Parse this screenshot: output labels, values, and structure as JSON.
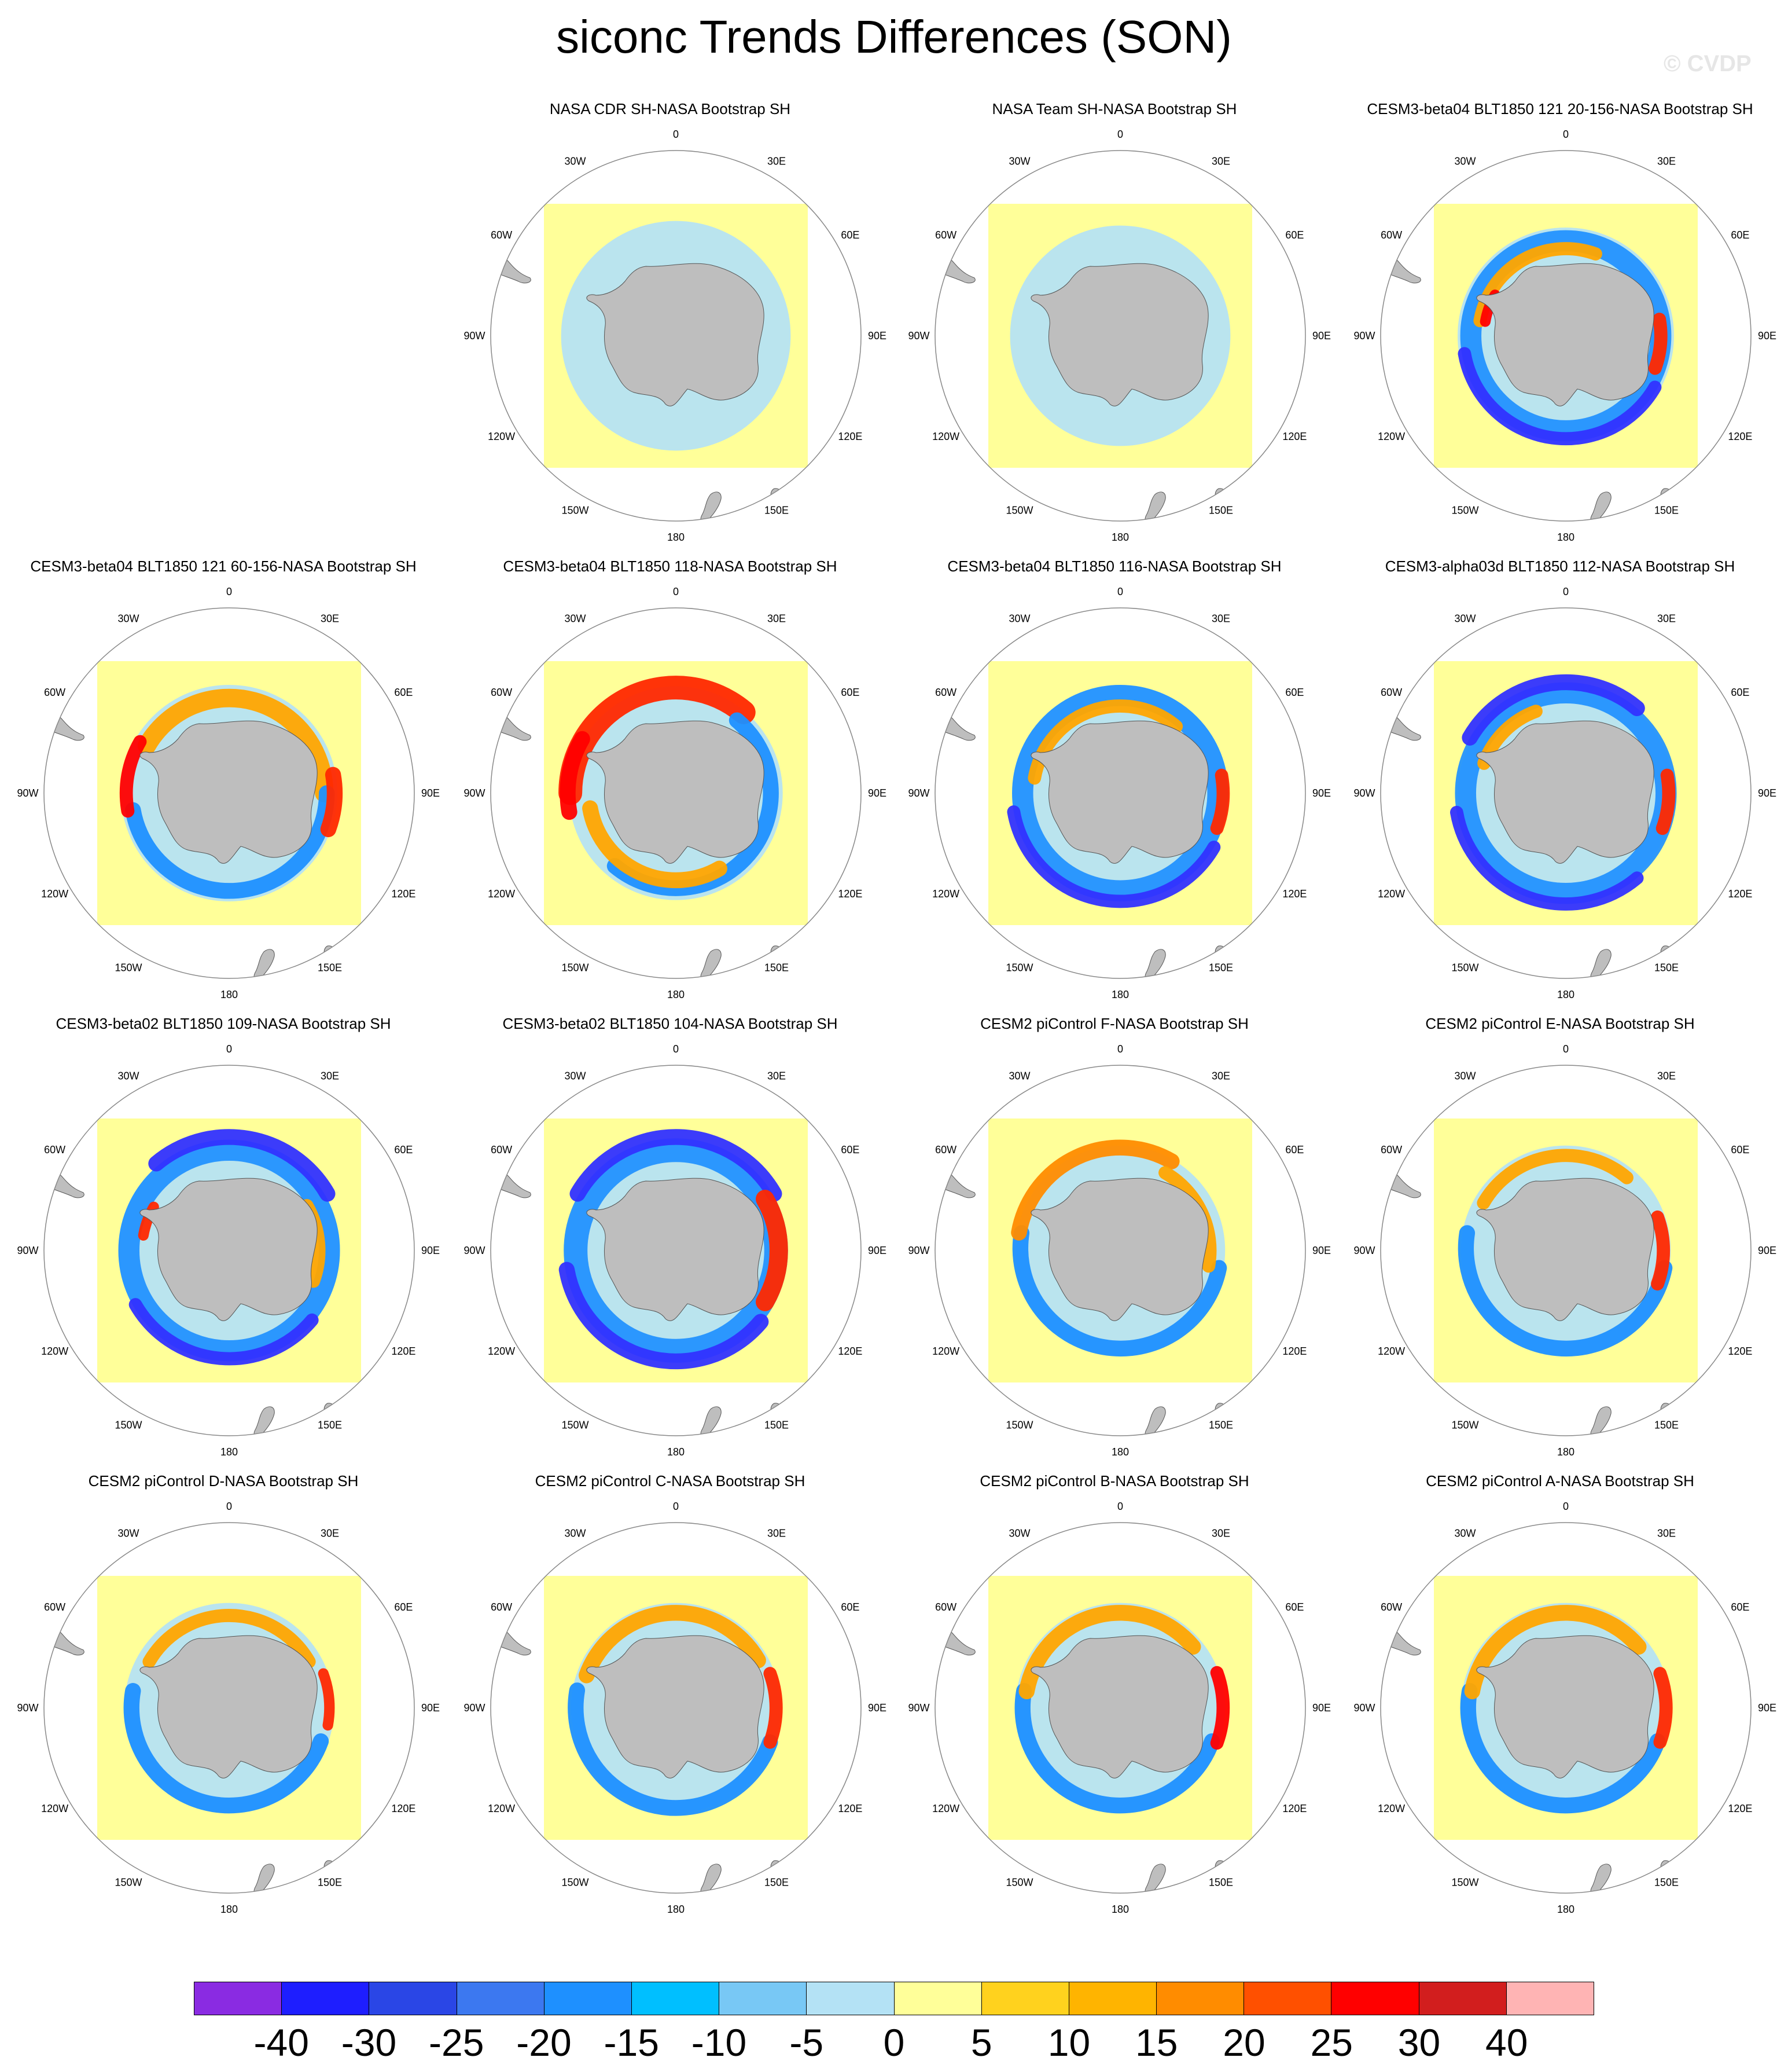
{
  "title": "siconc Trends Differences (SON)",
  "watermark": "© CVDP",
  "map": {
    "projection": "polar stereographic (south)",
    "land_color": "#bebebe",
    "ocean_background": "#ffff99",
    "longitude_labels": [
      "0",
      "30E",
      "60E",
      "90E",
      "120E",
      "150E",
      "180",
      "150W",
      "120W",
      "90W",
      "60W",
      "30W"
    ]
  },
  "panels": [
    {
      "title": "NASA CDR SH-NASA Bootstrap SH",
      "empty": false
    },
    {
      "title": "NASA Team SH-NASA Bootstrap SH",
      "empty": false
    },
    {
      "title": "CESM3-beta04 BLT1850 121 20-156-NASA Bootstrap SH",
      "empty": false
    },
    {
      "title": "CESM3-beta04 BLT1850 121 60-156-NASA Bootstrap SH",
      "empty": false
    },
    {
      "title": "CESM3-beta04 BLT1850 118-NASA Bootstrap SH",
      "empty": false
    },
    {
      "title": "CESM3-beta04 BLT1850 116-NASA Bootstrap SH",
      "empty": false
    },
    {
      "title": "CESM3-alpha03d BLT1850 112-NASA Bootstrap SH",
      "empty": false
    },
    {
      "title": "CESM3-beta02 BLT1850 109-NASA Bootstrap SH",
      "empty": false
    },
    {
      "title": "CESM3-beta02 BLT1850 104-NASA Bootstrap SH",
      "empty": false
    },
    {
      "title": "CESM2 piControl F-NASA Bootstrap SH",
      "empty": false
    },
    {
      "title": "CESM2 piControl E-NASA Bootstrap SH",
      "empty": false
    },
    {
      "title": "CESM2 piControl D-NASA Bootstrap SH",
      "empty": false
    },
    {
      "title": "CESM2 piControl C-NASA Bootstrap SH",
      "empty": false
    },
    {
      "title": "CESM2 piControl B-NASA Bootstrap SH",
      "empty": false
    },
    {
      "title": "CESM2 piControl A-NASA Bootstrap SH",
      "empty": false
    }
  ],
  "panel_fields": [
    [
      {
        "radius": 0.62,
        "color": "#b4e2f5",
        "width": 0.5
      }
    ],
    [
      {
        "radius": 0.56,
        "color": "#b4e2f5",
        "width": 0.55
      }
    ],
    [
      {
        "radius": 0.52,
        "color": "#b4e2f5",
        "width": 0.6
      },
      {
        "radius": 0.72,
        "color": "#1e90ff",
        "width": 0.16
      },
      {
        "radius": 0.78,
        "color": "#3232ff",
        "width": 0.1,
        "from": 120,
        "to": 260
      },
      {
        "radius": 0.66,
        "color": "#ffa500",
        "width": 0.1,
        "from": 280,
        "to": 380
      },
      {
        "radius": 0.72,
        "color": "#ff2800",
        "width": 0.1,
        "from": 80,
        "to": 110
      },
      {
        "radius": 0.62,
        "color": "#ff0000",
        "width": 0.08,
        "from": 280,
        "to": 300
      }
    ],
    [
      {
        "radius": 0.52,
        "color": "#b4e2f5",
        "width": 0.6
      },
      {
        "radius": 0.72,
        "color": "#ffa500",
        "width": 0.14,
        "from": -60,
        "to": 90
      },
      {
        "radius": 0.74,
        "color": "#1e90ff",
        "width": 0.12,
        "from": 90,
        "to": 260
      },
      {
        "radius": 0.8,
        "color": "#ff2800",
        "width": 0.12,
        "from": 80,
        "to": 110
      },
      {
        "radius": 0.78,
        "color": "#ff0000",
        "width": 0.1,
        "from": 260,
        "to": 300
      }
    ],
    [
      {
        "radius": 0.56,
        "color": "#b4e2f5",
        "width": 0.5
      },
      {
        "radius": 0.8,
        "color": "#ff2800",
        "width": 0.18,
        "from": -90,
        "to": 40
      },
      {
        "radius": 0.72,
        "color": "#1e90ff",
        "width": 0.12,
        "from": 40,
        "to": 220
      },
      {
        "radius": 0.66,
        "color": "#ffa500",
        "width": 0.12,
        "from": 150,
        "to": 260
      },
      {
        "radius": 0.82,
        "color": "#ff0000",
        "width": 0.12,
        "from": 260,
        "to": 300
      }
    ],
    [
      {
        "radius": 0.52,
        "color": "#b4e2f5",
        "width": 0.6
      },
      {
        "radius": 0.74,
        "color": "#1e90ff",
        "width": 0.16
      },
      {
        "radius": 0.82,
        "color": "#3232ff",
        "width": 0.1,
        "from": 120,
        "to": 260
      },
      {
        "radius": 0.66,
        "color": "#ffa500",
        "width": 0.1,
        "from": 280,
        "to": 400
      },
      {
        "radius": 0.78,
        "color": "#ff2800",
        "width": 0.1,
        "from": 80,
        "to": 110
      }
    ],
    [
      {
        "radius": 0.52,
        "color": "#b4e2f5",
        "width": 0.6
      },
      {
        "radius": 0.76,
        "color": "#1e90ff",
        "width": 0.16
      },
      {
        "radius": 0.84,
        "color": "#3232ff",
        "width": 0.12,
        "from": -60,
        "to": 40
      },
      {
        "radius": 0.84,
        "color": "#3232ff",
        "width": 0.1,
        "from": 140,
        "to": 260
      },
      {
        "radius": 0.66,
        "color": "#ffa500",
        "width": 0.1,
        "from": 290,
        "to": 340
      },
      {
        "radius": 0.78,
        "color": "#ff2800",
        "width": 0.1,
        "from": 80,
        "to": 110
      }
    ],
    [
      {
        "radius": 0.54,
        "color": "#b4e2f5",
        "width": 0.6
      },
      {
        "radius": 0.76,
        "color": "#1e90ff",
        "width": 0.16
      },
      {
        "radius": 0.86,
        "color": "#3232ff",
        "width": 0.12,
        "from": -40,
        "to": 60
      },
      {
        "radius": 0.82,
        "color": "#3232ff",
        "width": 0.1,
        "from": 130,
        "to": 240
      },
      {
        "radius": 0.68,
        "color": "#ffa500",
        "width": 0.1,
        "from": 60,
        "to": 110
      },
      {
        "radius": 0.66,
        "color": "#ff2800",
        "width": 0.08,
        "from": 280,
        "to": 300
      }
    ],
    [
      {
        "radius": 0.54,
        "color": "#b4e2f5",
        "width": 0.6
      },
      {
        "radius": 0.76,
        "color": "#1e90ff",
        "width": 0.18
      },
      {
        "radius": 0.86,
        "color": "#3232ff",
        "width": 0.12,
        "from": -60,
        "to": 60
      },
      {
        "radius": 0.84,
        "color": "#3232ff",
        "width": 0.12,
        "from": 130,
        "to": 260
      },
      {
        "radius": 0.78,
        "color": "#ff2800",
        "width": 0.14,
        "from": 60,
        "to": 120
      }
    ],
    [
      {
        "radius": 0.52,
        "color": "#b4e2f5",
        "width": 0.55
      },
      {
        "radius": 0.76,
        "color": "#1e90ff",
        "width": 0.12,
        "from": 100,
        "to": 280
      },
      {
        "radius": 0.78,
        "color": "#ff8c00",
        "width": 0.12,
        "from": -80,
        "to": 30
      },
      {
        "radius": 0.68,
        "color": "#ffa500",
        "width": 0.1,
        "from": 30,
        "to": 100
      }
    ],
    [
      {
        "radius": 0.52,
        "color": "#b4e2f5",
        "width": 0.55
      },
      {
        "radius": 0.76,
        "color": "#1e90ff",
        "width": 0.12,
        "from": 100,
        "to": 280
      },
      {
        "radius": 0.72,
        "color": "#ffa500",
        "width": 0.1,
        "from": -60,
        "to": 40
      },
      {
        "radius": 0.74,
        "color": "#ff2800",
        "width": 0.1,
        "from": 70,
        "to": 110
      }
    ],
    [
      {
        "radius": 0.52,
        "color": "#b4e2f5",
        "width": 0.55
      },
      {
        "radius": 0.74,
        "color": "#1e90ff",
        "width": 0.12,
        "from": 110,
        "to": 280
      },
      {
        "radius": 0.7,
        "color": "#ffa500",
        "width": 0.1,
        "from": -60,
        "to": 60
      },
      {
        "radius": 0.76,
        "color": "#ff2800",
        "width": 0.08,
        "from": 70,
        "to": 100
      }
    ],
    [
      {
        "radius": 0.52,
        "color": "#b4e2f5",
        "width": 0.55
      },
      {
        "radius": 0.76,
        "color": "#1e90ff",
        "width": 0.12,
        "from": 110,
        "to": 280
      },
      {
        "radius": 0.72,
        "color": "#ffa500",
        "width": 0.12,
        "from": -70,
        "to": 60
      },
      {
        "radius": 0.76,
        "color": "#ff2800",
        "width": 0.1,
        "from": 70,
        "to": 110
      }
    ],
    [
      {
        "radius": 0.52,
        "color": "#b4e2f5",
        "width": 0.55
      },
      {
        "radius": 0.74,
        "color": "#1e90ff",
        "width": 0.12,
        "from": 110,
        "to": 280
      },
      {
        "radius": 0.72,
        "color": "#ffa500",
        "width": 0.12,
        "from": -80,
        "to": 50
      },
      {
        "radius": 0.78,
        "color": "#ff0000",
        "width": 0.1,
        "from": 70,
        "to": 110
      }
    ],
    [
      {
        "radius": 0.52,
        "color": "#b4e2f5",
        "width": 0.55
      },
      {
        "radius": 0.74,
        "color": "#1e90ff",
        "width": 0.12,
        "from": 110,
        "to": 280
      },
      {
        "radius": 0.72,
        "color": "#ffa500",
        "width": 0.12,
        "from": -80,
        "to": 50
      },
      {
        "radius": 0.76,
        "color": "#ff2800",
        "width": 0.1,
        "from": 70,
        "to": 110
      }
    ]
  ],
  "colorbar": {
    "colors": [
      "#8a2be2",
      "#1e1eff",
      "#2a46e6",
      "#3c78f0",
      "#1e90ff",
      "#00bfff",
      "#78c8f5",
      "#b4e2f5",
      "#ffff99",
      "#ffd21e",
      "#ffb400",
      "#ff8c00",
      "#ff5000",
      "#ff0000",
      "#d21e1e",
      "#ffb4b4"
    ],
    "labels": [
      "-40",
      "-30",
      "-25",
      "-20",
      "-15",
      "-10",
      "-5",
      "0",
      "5",
      "10",
      "15",
      "20",
      "25",
      "30",
      "40"
    ]
  }
}
